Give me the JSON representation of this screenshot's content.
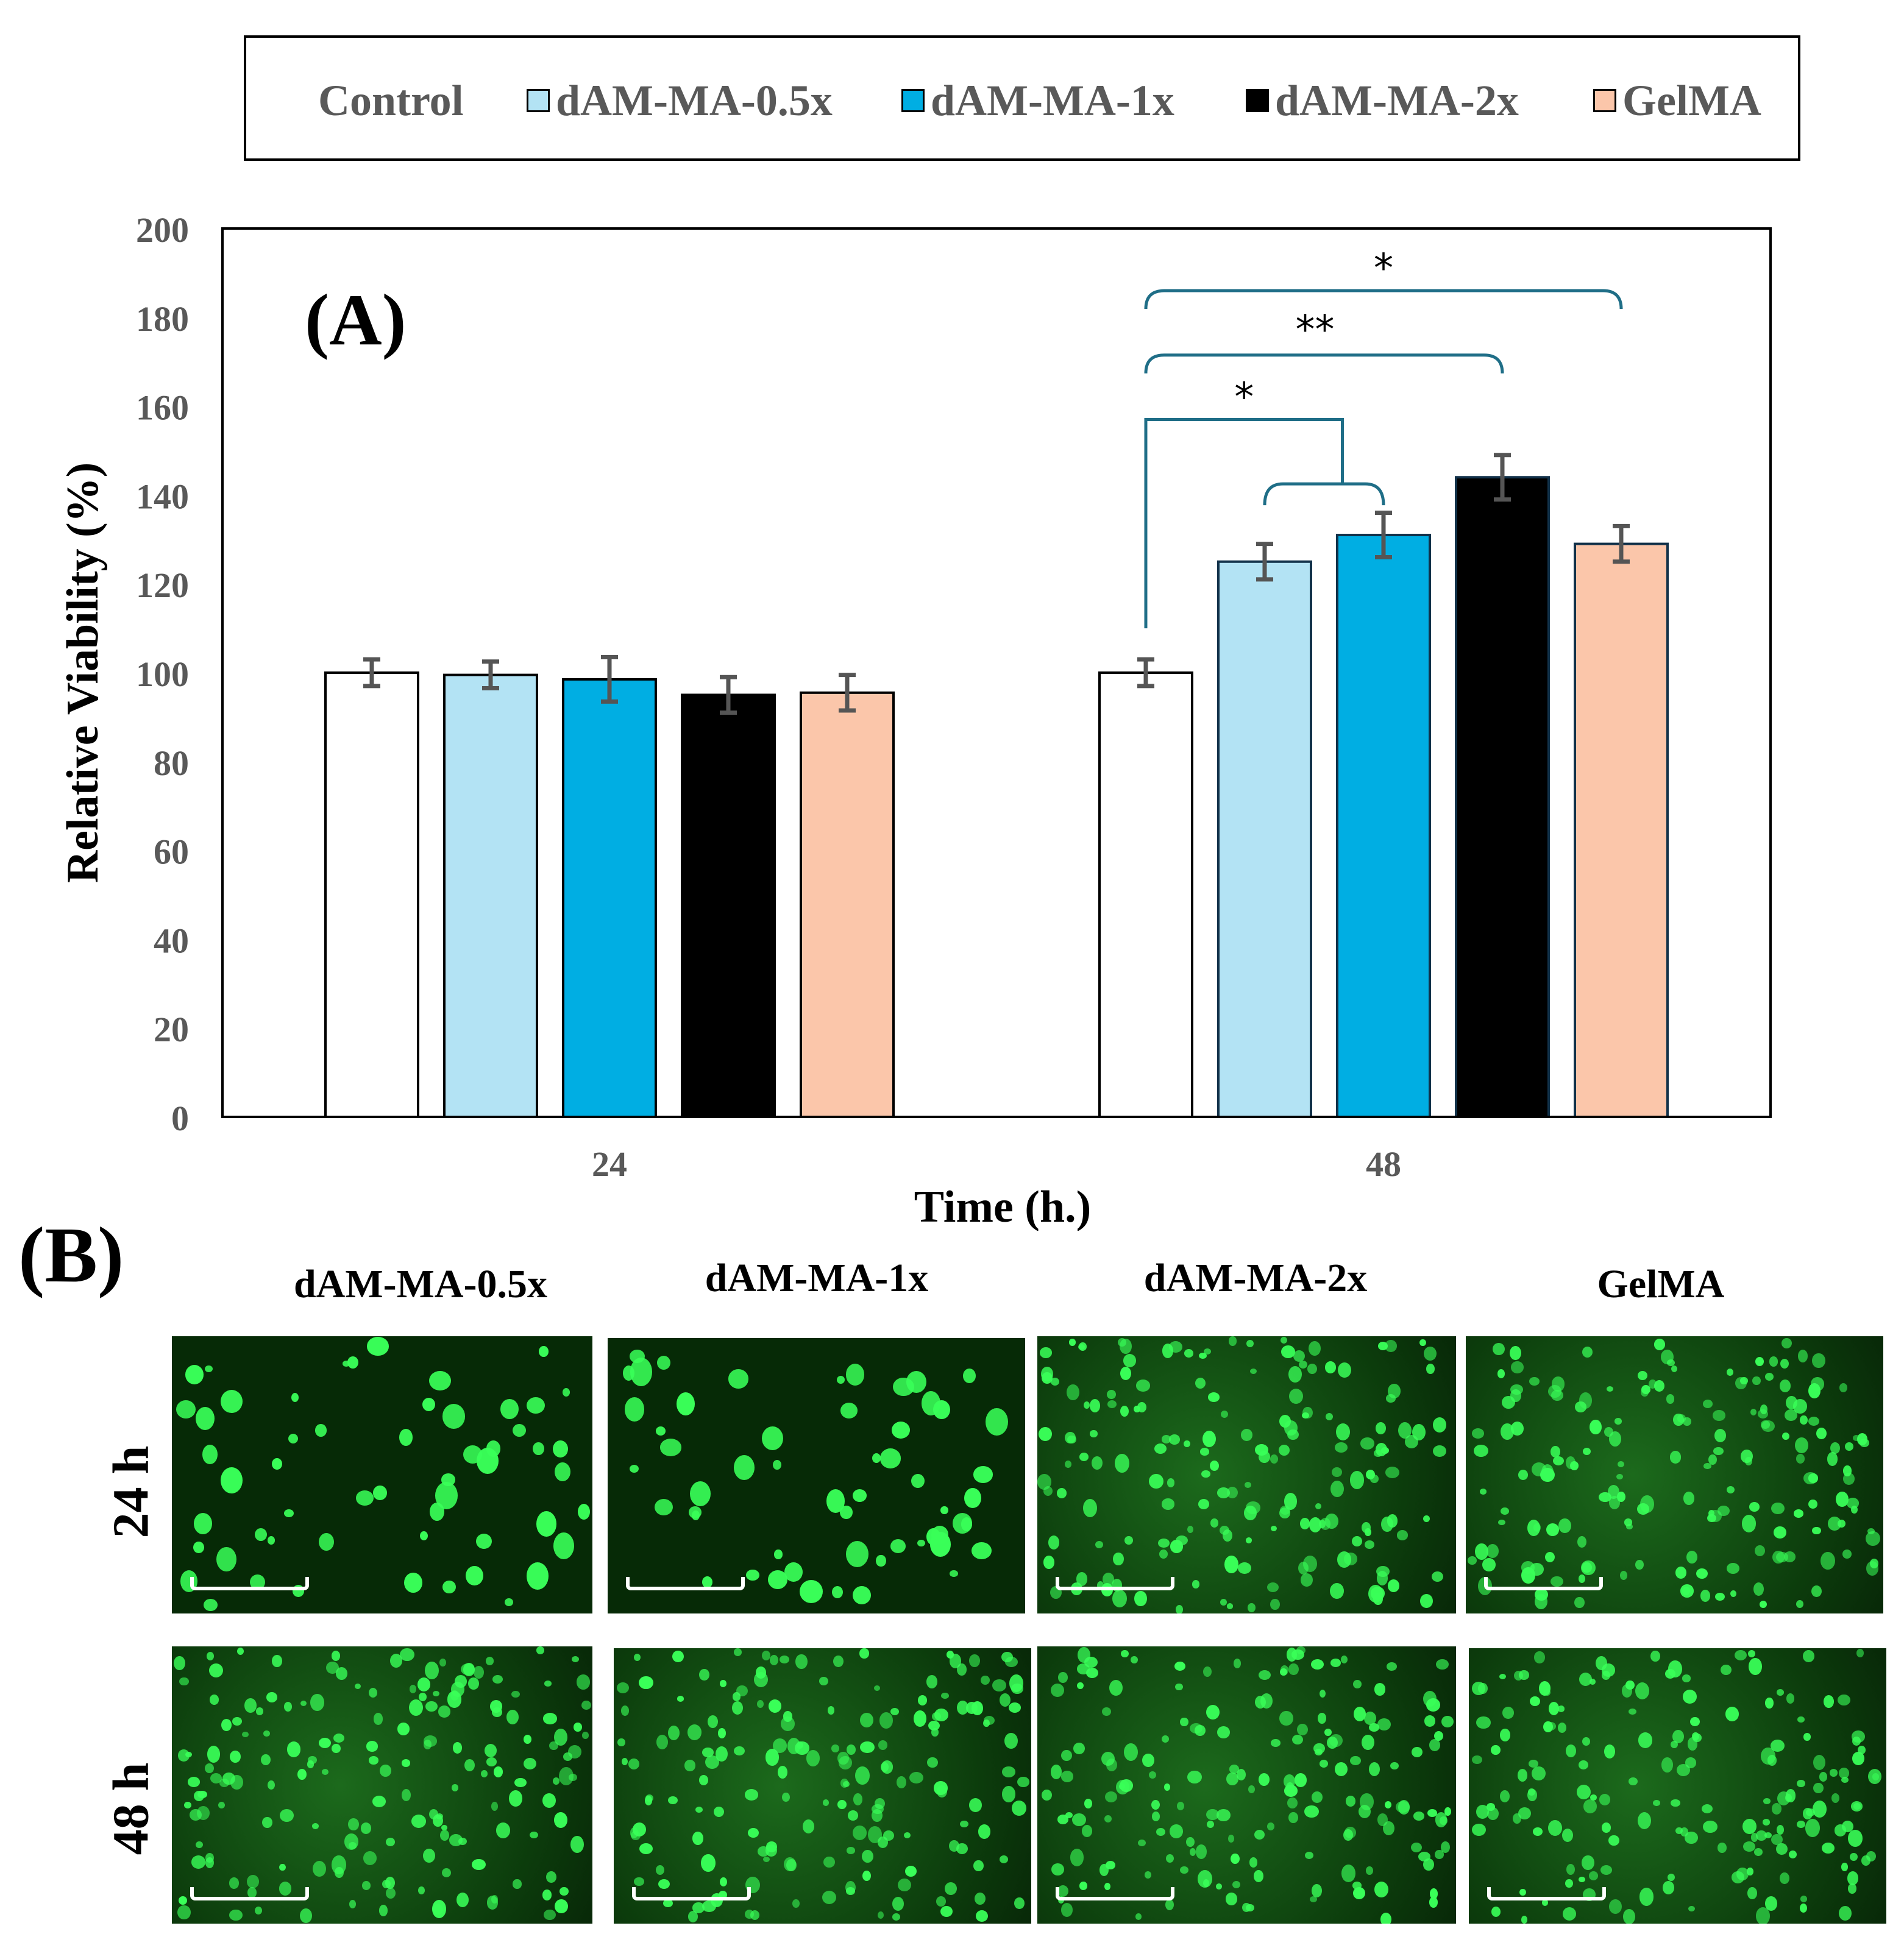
{
  "chart_data": {
    "type": "bar",
    "panel_label": "(A)",
    "xlabel": "Time (h.)",
    "ylabel": "Relative Viability (%)",
    "ylim": [
      0,
      200
    ],
    "yticks": [
      "0",
      "20",
      "40",
      "60",
      "80",
      "100",
      "120",
      "140",
      "160",
      "180",
      "200"
    ],
    "categories": [
      "24",
      "48"
    ],
    "legend_position": "top",
    "series": [
      {
        "name": "Control",
        "color": "#ffffff",
        "values": [
          100,
          100
        ],
        "errors": [
          3,
          3
        ]
      },
      {
        "name": "dAM-MA-0.5x",
        "color": "#b3e3f4",
        "values": [
          99.5,
          125
        ],
        "errors": [
          3,
          4
        ]
      },
      {
        "name": "dAM-MA-1x",
        "color": "#00aee3",
        "values": [
          98.5,
          131
        ],
        "errors": [
          5,
          5
        ]
      },
      {
        "name": "dAM-MA-2x",
        "color": "#000000",
        "values": [
          95,
          144
        ],
        "errors": [
          4,
          5
        ]
      },
      {
        "name": "GelMA",
        "color": "#fbc6aa",
        "values": [
          95.5,
          129
        ],
        "errors": [
          4,
          4
        ]
      }
    ],
    "significance": [
      {
        "label": "*",
        "compare": "Control 48 vs dAM-MA-0.5x / dAM-MA-1x 48"
      },
      {
        "label": "**",
        "compare": "Control 48 vs dAM-MA-2x 48"
      },
      {
        "label": "*",
        "compare": "Control 48 vs GelMA 48"
      }
    ]
  },
  "panel_b": {
    "panel_label": "(B)",
    "columns": [
      "dAM-MA-0.5x",
      "dAM-MA-1x",
      "dAM-MA-2x",
      "GelMA"
    ],
    "rows": [
      "24 h",
      "48 h"
    ]
  }
}
